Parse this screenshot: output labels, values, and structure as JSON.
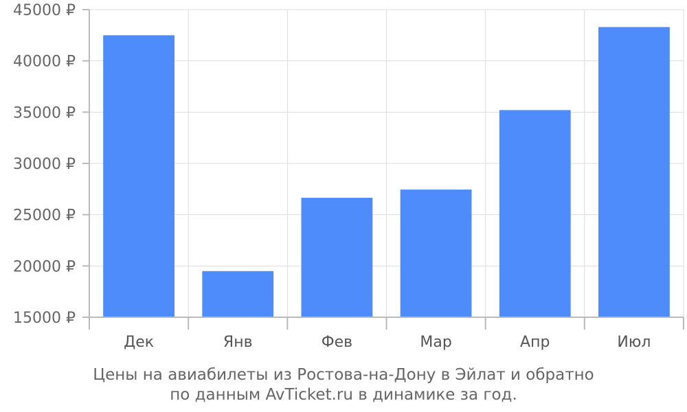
{
  "chart_data": {
    "type": "bar",
    "categories": [
      "Дек",
      "Янв",
      "Фев",
      "Мар",
      "Апр",
      "Июл"
    ],
    "values": [
      42500,
      19500,
      26650,
      27450,
      35200,
      43300
    ],
    "ylim": [
      15000,
      45000
    ],
    "yticks": [
      15000,
      20000,
      25000,
      30000,
      35000,
      40000,
      45000
    ],
    "ytick_labels": [
      "15000 ₽",
      "20000 ₽",
      "25000 ₽",
      "30000 ₽",
      "35000 ₽",
      "40000 ₽",
      "45000 ₽"
    ],
    "grid": true,
    "bar_color": "#4e8cfc",
    "caption_lines": [
      "Цены на авиабилеты из Ростова-на-Дону в Эйлат и обратно",
      "по данным AvTicket.ru в динамике за год."
    ]
  }
}
